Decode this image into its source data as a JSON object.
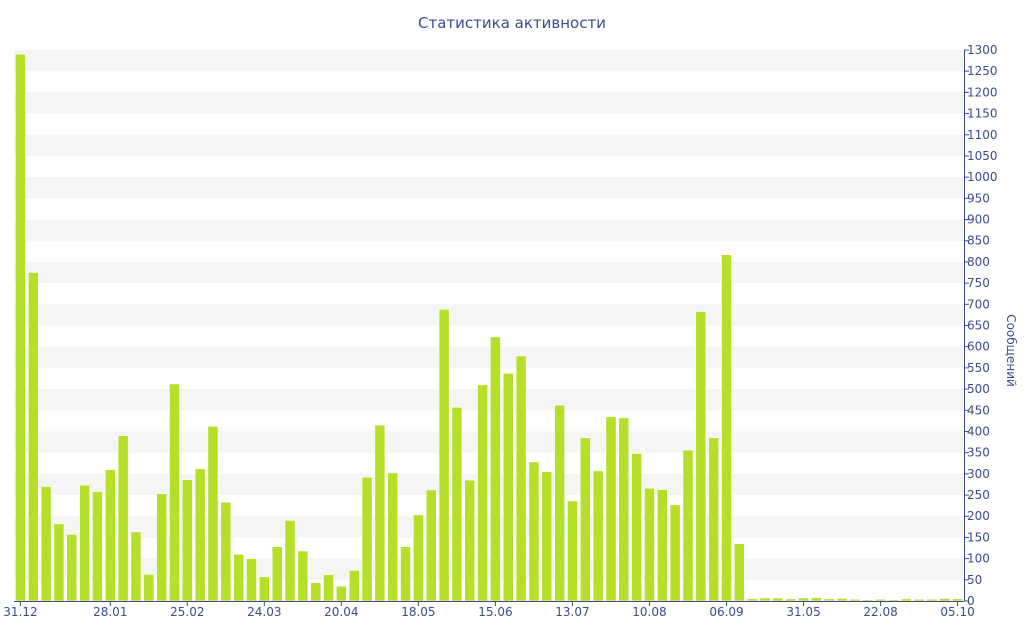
{
  "chart_data": {
    "type": "bar",
    "title": "Статистика активности",
    "xlabel": "",
    "ylabel": "Сообщений",
    "ylim": [
      0,
      1300
    ],
    "y_ticks": [
      0,
      50,
      100,
      150,
      200,
      250,
      300,
      350,
      400,
      450,
      500,
      550,
      600,
      650,
      700,
      750,
      800,
      850,
      900,
      950,
      1000,
      1050,
      1100,
      1150,
      1200,
      1250,
      1300
    ],
    "y_axis_position": "right",
    "grid": "horizontal bands",
    "x_tick_labels": [
      {
        "index": 0,
        "label": "31.12"
      },
      {
        "index": 7,
        "label": "28.01"
      },
      {
        "index": 13,
        "label": "25.02"
      },
      {
        "index": 19,
        "label": "24.03"
      },
      {
        "index": 25,
        "label": "20.04"
      },
      {
        "index": 31,
        "label": "18.05"
      },
      {
        "index": 37,
        "label": "15.06"
      },
      {
        "index": 43,
        "label": "13.07"
      },
      {
        "index": 49,
        "label": "10.08"
      },
      {
        "index": 55,
        "label": "06.09"
      },
      {
        "index": 61,
        "label": "31.05"
      },
      {
        "index": 67,
        "label": "22.08"
      },
      {
        "index": 73,
        "label": "05.10"
      }
    ],
    "values": [
      1290,
      775,
      270,
      182,
      157,
      273,
      258,
      310,
      390,
      163,
      63,
      253,
      512,
      286,
      312,
      412,
      233,
      110,
      100,
      57,
      128,
      190,
      118,
      43,
      62,
      35,
      72,
      292,
      415,
      302,
      128,
      203,
      262,
      688,
      457,
      285,
      510,
      623,
      537,
      578,
      328,
      305,
      462,
      236,
      385,
      307,
      435,
      432,
      348,
      266,
      263,
      227,
      356,
      683,
      385,
      817,
      135,
      5,
      7,
      7,
      5,
      7,
      8,
      5,
      6,
      4,
      3,
      4,
      3,
      5,
      4,
      4,
      6,
      5
    ]
  },
  "colors": {
    "bar": "#b5e02a",
    "bar_border": "#ffffff",
    "band": "#f5f5f5",
    "text": "#3a4e8c",
    "axis": "#3a4e8c"
  }
}
